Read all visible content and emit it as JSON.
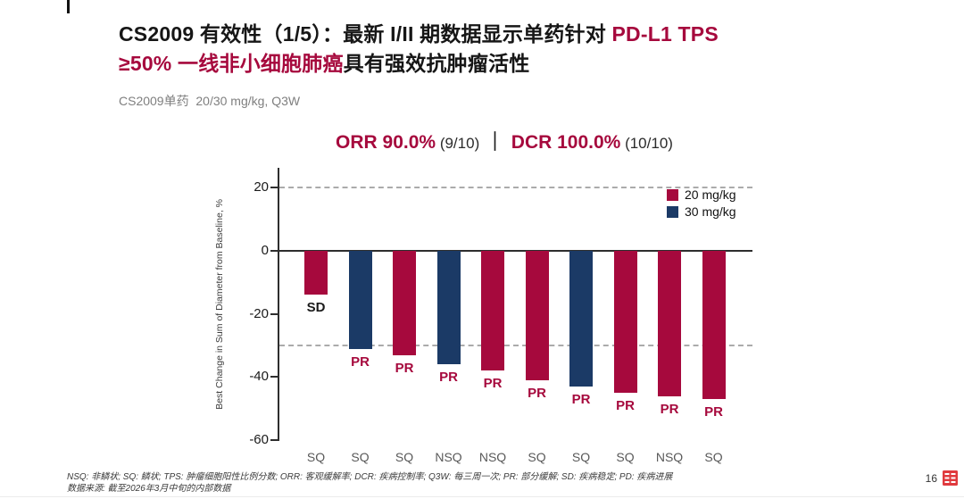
{
  "slide": {
    "title": {
      "line1_black": "CS2009 有效性（1/5）：最新 I/II 期数据显示单药针对 ",
      "line1_red": "PD-L1 TPS",
      "line2_red": "≥50% 一线非小细胞肺癌",
      "line2_black": "具有强效抗肿瘤活性"
    },
    "subtitle": "CS2009单药  20/30 mg/kg, Q3W"
  },
  "summary": {
    "orr_label": "ORR 90.0%",
    "orr_n": " (9/10) ",
    "separator": "｜",
    "dcr_label": " DCR 100.0%",
    "dcr_n": " (10/10)"
  },
  "chart_data": {
    "type": "bar",
    "title": "ORR 90.0% (9/10) ｜ DCR 100.0% (10/10)",
    "ylabel": "Best Change in Sum of Diameter from Baseline, %",
    "xlabel": "",
    "ylim": [
      -62,
      26
    ],
    "yticks": [
      20,
      0,
      -20,
      -40,
      -60
    ],
    "reference_lines": [
      20,
      -30
    ],
    "grid": "dashed-horizontal-only",
    "legend_position": "top-right-inside",
    "categories": [
      "SQ",
      "SQ",
      "SQ",
      "NSQ",
      "NSQ",
      "SQ",
      "SQ",
      "SQ",
      "NSQ",
      "SQ"
    ],
    "values": [
      -14,
      -31,
      -33,
      -36,
      -38,
      -41,
      -43,
      -45,
      -46,
      -47
    ],
    "doses": [
      "20 mg/kg",
      "30 mg/kg",
      "20 mg/kg",
      "30 mg/kg",
      "20 mg/kg",
      "20 mg/kg",
      "30 mg/kg",
      "20 mg/kg",
      "20 mg/kg",
      "20 mg/kg"
    ],
    "responses": [
      "SD",
      "PR",
      "PR",
      "PR",
      "PR",
      "PR",
      "PR",
      "PR",
      "PR",
      "PR"
    ],
    "legend": [
      {
        "label": "20 mg/kg",
        "color": "#A6093D"
      },
      {
        "label": "30 mg/kg",
        "color": "#1B3A66"
      }
    ],
    "series_color_by_dose": {
      "20 mg/kg": "#A6093D",
      "30 mg/kg": "#1B3A66"
    },
    "response_colors": {
      "SD": "#1a1a1a",
      "PR": "#A6093D"
    }
  },
  "footnotes": {
    "line1": "NSQ: 非鳞状; SQ: 鳞状; TPS: 肿瘤细胞阳性比例分数; ORR: 客观缓解率; DCR: 疾病控制率; Q3W: 每三周一次; PR: 部分缓解; SD: 疾病稳定; PD: 疾病进展",
    "line2": "数据来源: 截至2026年3月中旬的内部数据"
  },
  "footer": {
    "page_number": "16",
    "logo_name": "red-square-grid-logo"
  },
  "colors": {
    "accent_crimson": "#A6093D",
    "accent_navy": "#1B3A66",
    "axis": "#2e2e2e",
    "gridline": "#ababab",
    "subtitle_gray": "#7f7f7f",
    "xlabel_gray": "#595959",
    "logo_red": "#E03A3E"
  }
}
